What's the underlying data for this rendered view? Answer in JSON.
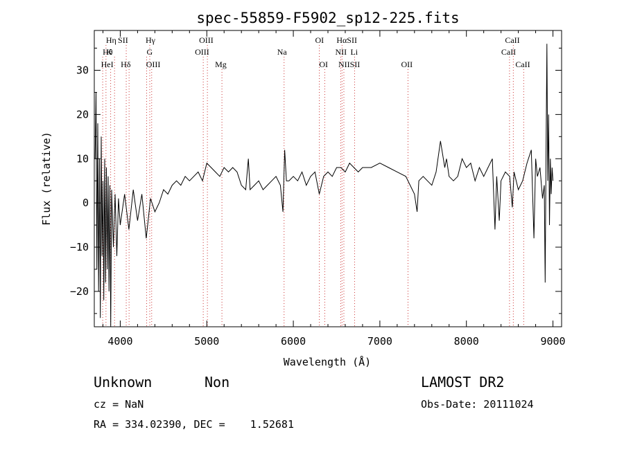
{
  "chart_data": {
    "type": "line",
    "title": "spec-55859-F5902_sp12-225.fits",
    "xlabel": "Wavelength (Å)",
    "ylabel": "Flux (relative)",
    "xlim": [
      3700,
      9100
    ],
    "ylim": [
      -28,
      39
    ],
    "xticks": [
      4000,
      5000,
      6000,
      7000,
      8000,
      9000
    ],
    "yticks": [
      -20,
      -10,
      0,
      10,
      20,
      30
    ],
    "grid": false,
    "series": [
      {
        "x": [
          3710,
          3720,
          3730,
          3740,
          3750,
          3760,
          3770,
          3780,
          3790,
          3800,
          3810,
          3820,
          3830,
          3840,
          3850,
          3860,
          3870,
          3880,
          3890,
          3900,
          3920,
          3940,
          3960,
          3980,
          4000,
          4050,
          4100,
          4150,
          4200,
          4250,
          4300,
          4350,
          4400,
          4450,
          4500,
          4550,
          4600,
          4650,
          4700,
          4750,
          4800,
          4850,
          4900,
          4950,
          5000,
          5050,
          5100,
          5150,
          5200,
          5250,
          5300,
          5350,
          5400,
          5450,
          5480,
          5500,
          5550,
          5600,
          5650,
          5700,
          5750,
          5800,
          5850,
          5880,
          5900,
          5920,
          5950,
          6000,
          6050,
          6100,
          6150,
          6200,
          6250,
          6300,
          6350,
          6400,
          6450,
          6500,
          6550,
          6600,
          6650,
          6700,
          6750,
          6800,
          6900,
          7000,
          7100,
          7200,
          7300,
          7400,
          7430,
          7450,
          7500,
          7550,
          7600,
          7650,
          7700,
          7750,
          7770,
          7800,
          7850,
          7900,
          7950,
          8000,
          8050,
          8100,
          8150,
          8200,
          8250,
          8300,
          8330,
          8350,
          8380,
          8400,
          8450,
          8500,
          8530,
          8550,
          8600,
          8650,
          8700,
          8750,
          8780,
          8800,
          8820,
          8850,
          8880,
          8900,
          8910,
          8920,
          8930,
          8940,
          8950,
          8960,
          8970,
          8980,
          8990,
          9000
        ],
        "y": [
          10,
          25,
          -15,
          18,
          -20,
          10,
          -26,
          15,
          -12,
          5,
          -22,
          10,
          -18,
          8,
          -15,
          6,
          -20,
          4,
          -28,
          3,
          -10,
          2,
          -12,
          1,
          -5,
          2,
          -6,
          3,
          -4,
          2,
          -8,
          1,
          -2,
          0,
          3,
          2,
          4,
          5,
          4,
          6,
          5,
          6,
          7,
          5,
          9,
          8,
          7,
          6,
          8,
          7,
          8,
          7,
          4,
          3,
          10,
          3,
          4,
          5,
          3,
          4,
          5,
          6,
          4,
          -2,
          12,
          5,
          5,
          6,
          5,
          7,
          4,
          6,
          7,
          2,
          6,
          7,
          6,
          8,
          8,
          7,
          9,
          8,
          7,
          8,
          8,
          9,
          8,
          7,
          6,
          2,
          -2,
          5,
          6,
          5,
          4,
          7,
          14,
          8,
          10,
          6,
          5,
          6,
          10,
          8,
          9,
          5,
          8,
          6,
          8,
          10,
          -6,
          6,
          -4,
          5,
          7,
          6,
          -1,
          7,
          3,
          5,
          9,
          12,
          -8,
          10,
          6,
          8,
          1,
          4,
          -18,
          10,
          36,
          5,
          20,
          -5,
          10,
          2,
          8,
          5
        ],
        "color": "#000000"
      }
    ],
    "lines_labels": [
      {
        "name": "Hη",
        "x": 3835,
        "row": 0,
        "dx": 0
      },
      {
        "name": "Hθ",
        "x": 3797,
        "row": 1,
        "dx": 0
      },
      {
        "name": "K",
        "x": 3934,
        "row": 1,
        "dx": -12
      },
      {
        "name": "HeI",
        "x": 3889,
        "row": 2,
        "dx": -14
      },
      {
        "name": "SII",
        "x": 4069,
        "row": 0,
        "dx": -12
      },
      {
        "name": "Hδ",
        "x": 4102,
        "row": 2,
        "dx": -12
      },
      {
        "name": "Hγ",
        "x": 4341,
        "row": 0,
        "dx": -6
      },
      {
        "name": "G",
        "x": 4305,
        "row": 1,
        "dx": 0
      },
      {
        "name": "OIII",
        "x": 4363,
        "row": 2,
        "dx": -8
      },
      {
        "name": "OIII",
        "x": 5007,
        "row": 0,
        "dx": -12
      },
      {
        "name": "OIII",
        "x": 4959,
        "row": 1,
        "dx": -12
      },
      {
        "name": "Mg",
        "x": 5175,
        "row": 2,
        "dx": -10
      },
      {
        "name": "Na",
        "x": 5893,
        "row": 1,
        "dx": -10
      },
      {
        "name": "OI",
        "x": 6300,
        "row": 0,
        "dx": -6
      },
      {
        "name": "OI",
        "x": 6363,
        "row": 2,
        "dx": -8
      },
      {
        "name": "HαSII",
        "x": 6563,
        "row": 0,
        "dx": -8
      },
      {
        "name": "NII",
        "x": 6548,
        "row": 1,
        "dx": -8
      },
      {
        "name": "Li",
        "x": 6708,
        "row": 1,
        "dx": -6
      },
      {
        "name": "NIISII",
        "x": 6584,
        "row": 2,
        "dx": -8
      },
      {
        "name": "OII",
        "x": 7325,
        "row": 2,
        "dx": -10
      },
      {
        "name": "CaII",
        "x": 8542,
        "row": 0,
        "dx": -12
      },
      {
        "name": "CaII",
        "x": 8498,
        "row": 1,
        "dx": -12
      },
      {
        "name": "CaII",
        "x": 8662,
        "row": 2,
        "dx": -12
      }
    ]
  },
  "info": {
    "class": "Unknown",
    "subclass": "Non",
    "survey": "LAMOST DR2",
    "cz": "cz = NaN",
    "obs_date": "Obs-Date: 20111024",
    "coords": "RA = 334.02390, DEC =    1.52681"
  }
}
